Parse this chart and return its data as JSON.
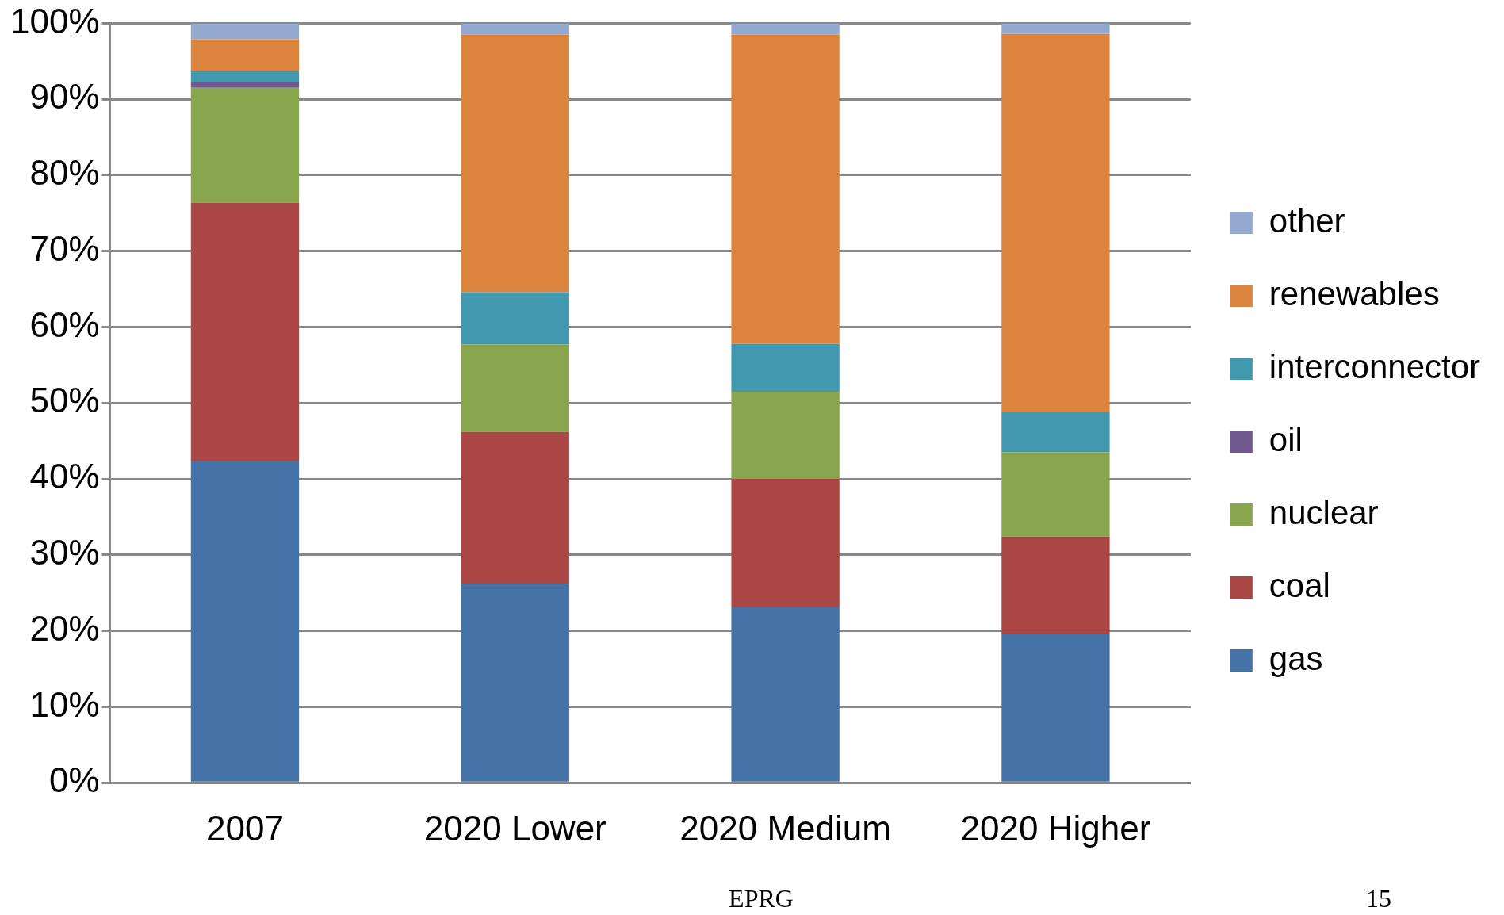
{
  "chart_data": {
    "type": "bar",
    "stacked": true,
    "categories": [
      "2007",
      "2020 Lower",
      "2020 Medium",
      "2020 Higher"
    ],
    "series": [
      {
        "name": "gas",
        "color": "#4572a7",
        "values": [
          42.4,
          26.2,
          23.1,
          19.6
        ]
      },
      {
        "name": "coal",
        "color": "#aa4643",
        "values": [
          34.0,
          20.0,
          16.9,
          12.8
        ]
      },
      {
        "name": "nuclear",
        "color": "#89a54e",
        "values": [
          15.1,
          11.5,
          11.5,
          11.1
        ]
      },
      {
        "name": "oil",
        "color": "#71588f",
        "values": [
          0.7,
          0,
          0,
          0
        ]
      },
      {
        "name": "interconnector",
        "color": "#4198af",
        "values": [
          1.5,
          6.9,
          6.3,
          5.3
        ]
      },
      {
        "name": "renewables",
        "color": "#db843d",
        "values": [
          4.2,
          33.9,
          40.7,
          49.8
        ]
      },
      {
        "name": "other",
        "color": "#93a9cf",
        "values": [
          2.1,
          1.5,
          1.5,
          1.4
        ]
      }
    ],
    "ylim": [
      0,
      100
    ],
    "yticks": [
      {
        "value": 0,
        "label": "0%"
      },
      {
        "value": 10,
        "label": "10%"
      },
      {
        "value": 20,
        "label": "20%"
      },
      {
        "value": 30,
        "label": "30%"
      },
      {
        "value": 40,
        "label": "40%"
      },
      {
        "value": 50,
        "label": "50%"
      },
      {
        "value": 60,
        "label": "60%"
      },
      {
        "value": 70,
        "label": "70%"
      },
      {
        "value": 80,
        "label": "80%"
      },
      {
        "value": 90,
        "label": "90%"
      },
      {
        "value": 100,
        "label": "100%"
      }
    ],
    "grid": "y",
    "legend": "right",
    "annotations": [
      "EPRG",
      "15"
    ]
  }
}
